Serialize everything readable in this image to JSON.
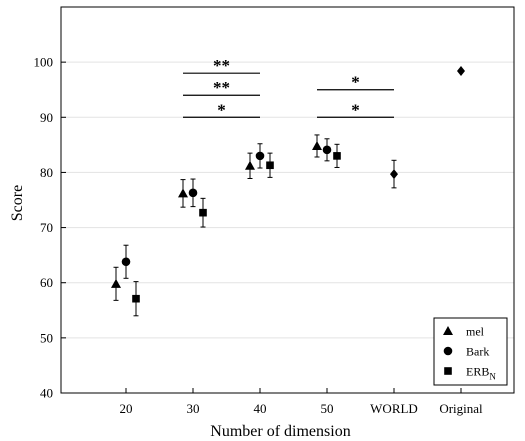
{
  "chart_data": {
    "type": "scatter",
    "xlabel": "Number of dimension",
    "ylabel": "Score",
    "ylim": [
      40,
      110
    ],
    "yticks": [
      40,
      50,
      60,
      70,
      80,
      90,
      100
    ],
    "categories": [
      "20",
      "30",
      "40",
      "50",
      "WORLD",
      "Original"
    ],
    "grid": "horizontal",
    "legend_position": "bottom-right",
    "series": [
      {
        "name": "mel",
        "marker": "triangle",
        "points": [
          {
            "category": "20",
            "value": 59.8,
            "err": 3.0
          },
          {
            "category": "30",
            "value": 76.2,
            "err": 2.5
          },
          {
            "category": "40",
            "value": 81.2,
            "err": 2.3
          },
          {
            "category": "50",
            "value": 84.8,
            "err": 2.0
          }
        ]
      },
      {
        "name": "Bark",
        "marker": "circle",
        "points": [
          {
            "category": "20",
            "value": 63.8,
            "err": 3.0
          },
          {
            "category": "30",
            "value": 76.3,
            "err": 2.5
          },
          {
            "category": "40",
            "value": 83.0,
            "err": 2.2
          },
          {
            "category": "50",
            "value": 84.1,
            "err": 2.0
          }
        ]
      },
      {
        "name": "ERB",
        "name_subscript": "N",
        "marker": "square",
        "points": [
          {
            "category": "20",
            "value": 57.1,
            "err": 3.1
          },
          {
            "category": "30",
            "value": 72.7,
            "err": 2.6
          },
          {
            "category": "40",
            "value": 81.3,
            "err": 2.2
          },
          {
            "category": "50",
            "value": 83.0,
            "err": 2.1
          }
        ]
      },
      {
        "name": "",
        "marker": "diamond",
        "points": [
          {
            "category": "WORLD",
            "value": 79.7,
            "err": 2.5
          },
          {
            "category": "Original",
            "value": 98.4,
            "err": 0
          }
        ]
      }
    ],
    "significance": [
      {
        "from": "30",
        "to": "40",
        "y": 98,
        "label": "**"
      },
      {
        "from": "30",
        "to": "40",
        "y": 94,
        "label": "**"
      },
      {
        "from": "30",
        "to": "40",
        "y": 90,
        "label": "*"
      },
      {
        "from": "50",
        "to": "WORLD",
        "y": 95,
        "label": "*"
      },
      {
        "from": "50",
        "to": "WORLD",
        "y": 90,
        "label": "*"
      }
    ]
  }
}
